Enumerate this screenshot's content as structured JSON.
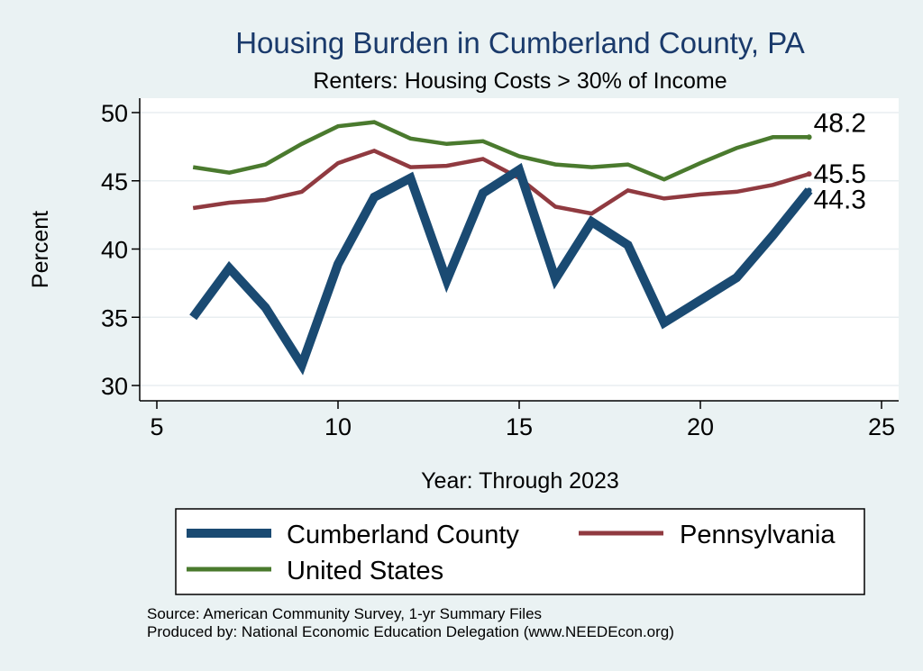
{
  "chart_data": {
    "type": "line",
    "title": "Housing Burden in Cumberland County, PA",
    "subtitle": "Renters: Housing Costs > 30% of Income",
    "xlabel": "Year: Through 2023",
    "ylabel": "Percent",
    "xlim": [
      5,
      25
    ],
    "ylim": [
      30,
      50
    ],
    "xticks": [
      5,
      10,
      15,
      20,
      25
    ],
    "yticks": [
      30,
      35,
      40,
      45,
      50
    ],
    "grid": true,
    "legend_position": "bottom",
    "series": [
      {
        "name": "Cumberland County",
        "color": "#1a4a72",
        "x": [
          6,
          7,
          8,
          9,
          10,
          11,
          12,
          13,
          14,
          15,
          16,
          17,
          18,
          19,
          21,
          22,
          23
        ],
        "values": [
          35.0,
          38.6,
          35.7,
          31.5,
          38.9,
          43.8,
          45.2,
          37.7,
          44.1,
          45.8,
          37.8,
          42.0,
          40.3,
          34.6,
          37.9,
          41.0,
          44.3
        ],
        "end_label": "44.3"
      },
      {
        "name": "Pennsylvania",
        "color": "#903a40",
        "x": [
          6,
          7,
          8,
          9,
          10,
          11,
          12,
          13,
          14,
          15,
          16,
          17,
          18,
          19,
          20,
          21,
          22,
          23
        ],
        "values": [
          43.0,
          43.4,
          43.6,
          44.2,
          46.3,
          47.2,
          46.0,
          46.1,
          46.6,
          45.2,
          43.1,
          42.6,
          44.3,
          43.7,
          44.0,
          44.2,
          44.7,
          45.5
        ],
        "end_label": "45.5"
      },
      {
        "name": "United States",
        "color": "#4a7a2e",
        "x": [
          6,
          7,
          8,
          9,
          10,
          11,
          12,
          13,
          14,
          15,
          16,
          17,
          18,
          19,
          20,
          21,
          22,
          23
        ],
        "values": [
          46.0,
          45.6,
          46.2,
          47.7,
          49.0,
          49.3,
          48.1,
          47.7,
          47.9,
          46.8,
          46.2,
          46.0,
          46.2,
          45.1,
          46.3,
          47.4,
          48.2,
          48.2
        ],
        "end_label": "48.2"
      }
    ]
  },
  "footer": {
    "source": "Source: American Community Survey, 1-yr Summary Files",
    "produced": "Produced by: National Economic Education Delegation (www.NEEDEcon.org)"
  }
}
